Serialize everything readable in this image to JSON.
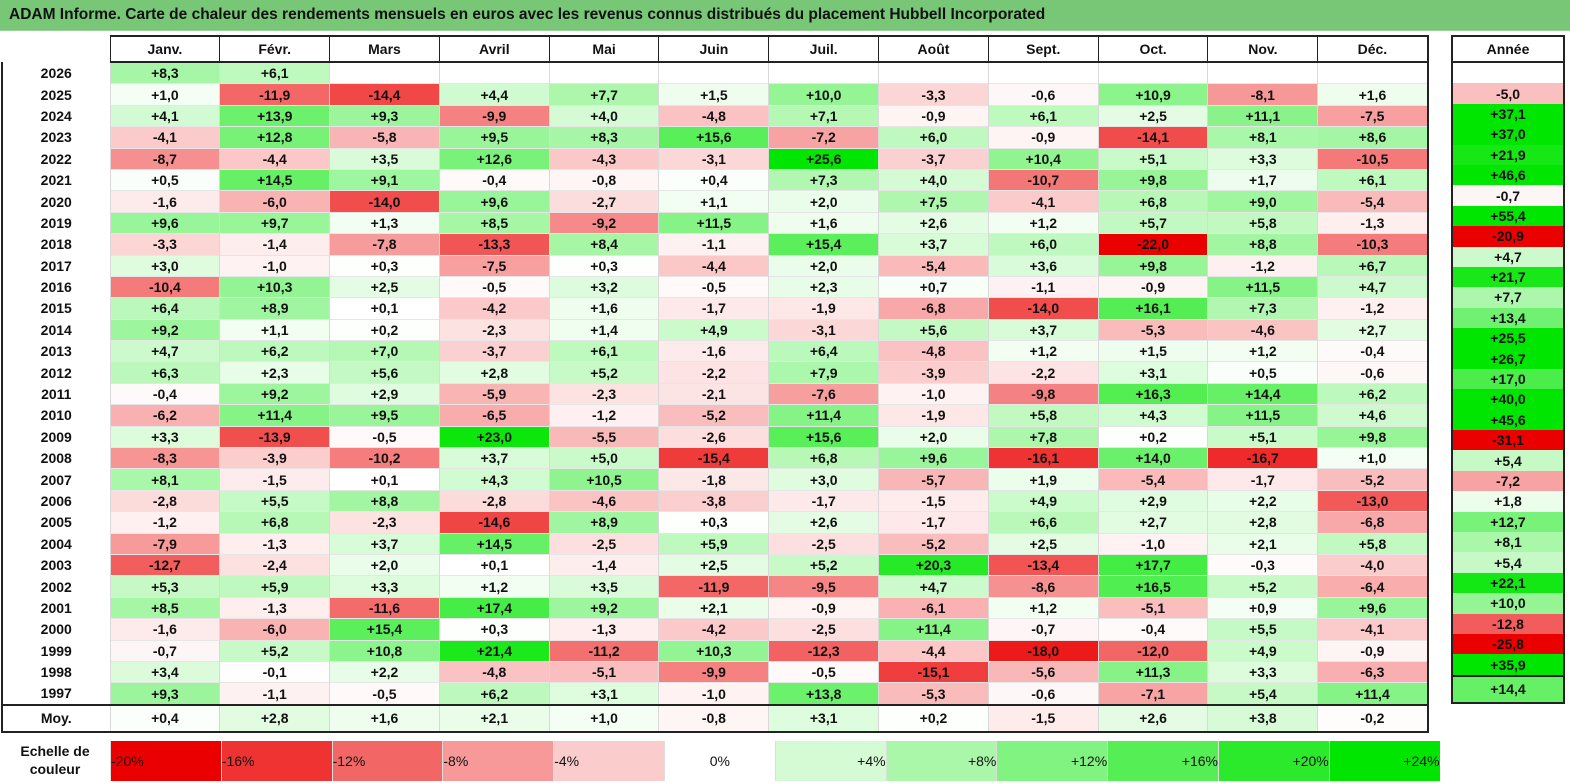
{
  "title": "ADAM Informe. Carte de chaleur des rendements mensuels en euros avec les revenus connus distribués du placement Hubbell Incorporated",
  "chart_data": {
    "type": "heatmap",
    "columns": [
      "Janv.",
      "Févr.",
      "Mars",
      "Avril",
      "Mai",
      "Juin",
      "Juil.",
      "Août",
      "Sept.",
      "Oct.",
      "Nov.",
      "Déc."
    ],
    "year_header": "Année",
    "rows": [
      {
        "year": "2026",
        "values": [
          "+8,3",
          "+6,1",
          "",
          "",
          "",
          "",
          "",
          "",
          "",
          "",
          "",
          ""
        ],
        "annual": ""
      },
      {
        "year": "2025",
        "values": [
          "+1,0",
          "-11,9",
          "-14,4",
          "+4,4",
          "+7,7",
          "+1,5",
          "+10,0",
          "-3,3",
          "-0,6",
          "+10,9",
          "-8,1",
          "+1,6"
        ],
        "annual": "-5,0"
      },
      {
        "year": "2024",
        "values": [
          "+4,1",
          "+13,9",
          "+9,3",
          "-9,9",
          "+4,0",
          "-4,8",
          "+7,1",
          "-0,9",
          "+6,1",
          "+2,5",
          "+11,1",
          "-7,5"
        ],
        "annual": "+37,1"
      },
      {
        "year": "2023",
        "values": [
          "-4,1",
          "+12,8",
          "-5,8",
          "+9,5",
          "+8,3",
          "+15,6",
          "-7,2",
          "+6,0",
          "-0,9",
          "-14,1",
          "+8,1",
          "+8,6"
        ],
        "annual": "+37,0"
      },
      {
        "year": "2022",
        "values": [
          "-8,7",
          "-4,4",
          "+3,5",
          "+12,6",
          "-4,3",
          "-3,1",
          "+25,6",
          "-3,7",
          "+10,4",
          "+5,1",
          "+3,3",
          "-10,5"
        ],
        "annual": "+21,9"
      },
      {
        "year": "2021",
        "values": [
          "+0,5",
          "+14,5",
          "+9,1",
          "-0,4",
          "-0,8",
          "+0,4",
          "+7,3",
          "+4,0",
          "-10,7",
          "+9,8",
          "+1,7",
          "+6,1"
        ],
        "annual": "+46,6"
      },
      {
        "year": "2020",
        "values": [
          "-1,6",
          "-6,0",
          "-14,0",
          "+9,6",
          "-2,7",
          "+1,1",
          "+2,0",
          "+7,5",
          "-4,1",
          "+6,8",
          "+9,0",
          "-5,4"
        ],
        "annual": "-0,7"
      },
      {
        "year": "2019",
        "values": [
          "+9,6",
          "+9,7",
          "+1,3",
          "+8,5",
          "-9,2",
          "+11,5",
          "+1,6",
          "+2,6",
          "+1,2",
          "+5,7",
          "+5,8",
          "-1,3"
        ],
        "annual": "+55,4"
      },
      {
        "year": "2018",
        "values": [
          "-3,3",
          "-1,4",
          "-7,8",
          "-13,3",
          "+8,4",
          "-1,1",
          "+15,4",
          "+3,7",
          "+6,0",
          "-22,0",
          "+8,8",
          "-10,3"
        ],
        "annual": "-20,9"
      },
      {
        "year": "2017",
        "values": [
          "+3,0",
          "-1,0",
          "+0,3",
          "-7,5",
          "+0,3",
          "-4,4",
          "+2,0",
          "-5,4",
          "+3,6",
          "+9,8",
          "-1,2",
          "+6,7"
        ],
        "annual": "+4,7"
      },
      {
        "year": "2016",
        "values": [
          "-10,4",
          "+10,3",
          "+2,5",
          "-0,5",
          "+3,2",
          "-0,5",
          "+2,3",
          "+0,7",
          "-1,1",
          "-0,9",
          "+11,5",
          "+4,7"
        ],
        "annual": "+21,7"
      },
      {
        "year": "2015",
        "values": [
          "+6,4",
          "+8,9",
          "+0,1",
          "-4,2",
          "+1,6",
          "-1,7",
          "-1,9",
          "-6,8",
          "-14,0",
          "+16,1",
          "+7,3",
          "-1,2"
        ],
        "annual": "+7,7"
      },
      {
        "year": "2014",
        "values": [
          "+9,2",
          "+1,1",
          "+0,2",
          "-2,3",
          "+1,4",
          "+4,9",
          "-3,1",
          "+5,6",
          "+3,7",
          "-5,3",
          "-4,6",
          "+2,7"
        ],
        "annual": "+13,4"
      },
      {
        "year": "2013",
        "values": [
          "+4,7",
          "+6,2",
          "+7,0",
          "-3,7",
          "+6,1",
          "-1,6",
          "+6,4",
          "-4,8",
          "+1,2",
          "+1,5",
          "+1,2",
          "-0,4"
        ],
        "annual": "+25,5"
      },
      {
        "year": "2012",
        "values": [
          "+6,3",
          "+2,3",
          "+5,6",
          "+2,8",
          "+5,2",
          "-2,2",
          "+7,9",
          "-3,9",
          "-2,2",
          "+3,1",
          "+0,5",
          "-0,6"
        ],
        "annual": "+26,7"
      },
      {
        "year": "2011",
        "values": [
          "-0,4",
          "+9,2",
          "+2,9",
          "-5,9",
          "-2,3",
          "-2,1",
          "-7,6",
          "-1,0",
          "-9,8",
          "+16,3",
          "+14,4",
          "+6,2"
        ],
        "annual": "+17,0"
      },
      {
        "year": "2010",
        "values": [
          "-6,2",
          "+11,4",
          "+9,5",
          "-6,5",
          "-1,2",
          "-5,2",
          "+11,4",
          "-1,9",
          "+5,8",
          "+4,3",
          "+11,5",
          "+4,6"
        ],
        "annual": "+40,0"
      },
      {
        "year": "2009",
        "values": [
          "+3,3",
          "-13,9",
          "-0,5",
          "+23,0",
          "-5,5",
          "-2,6",
          "+15,6",
          "+2,0",
          "+7,8",
          "+0,2",
          "+5,1",
          "+9,8"
        ],
        "annual": "+45,6"
      },
      {
        "year": "2008",
        "values": [
          "-8,3",
          "-3,9",
          "-10,2",
          "+3,7",
          "+5,0",
          "-15,4",
          "+6,8",
          "+9,6",
          "-16,1",
          "+14,0",
          "-16,7",
          "+1,0"
        ],
        "annual": "-31,1"
      },
      {
        "year": "2007",
        "values": [
          "+8,1",
          "-1,5",
          "+0,1",
          "+4,3",
          "+10,5",
          "-1,8",
          "+3,0",
          "-5,7",
          "+1,9",
          "-5,4",
          "-1,7",
          "-5,2"
        ],
        "annual": "+5,4"
      },
      {
        "year": "2006",
        "values": [
          "-2,8",
          "+5,5",
          "+8,8",
          "-2,8",
          "-4,6",
          "-3,8",
          "-1,7",
          "-1,5",
          "+4,9",
          "+2,9",
          "+2,2",
          "-13,0"
        ],
        "annual": "-7,2"
      },
      {
        "year": "2005",
        "values": [
          "-1,2",
          "+6,8",
          "-2,3",
          "-14,6",
          "+8,9",
          "+0,3",
          "+2,6",
          "-1,7",
          "+6,6",
          "+2,7",
          "+2,8",
          "-6,8"
        ],
        "annual": "+1,8"
      },
      {
        "year": "2004",
        "values": [
          "-7,9",
          "-1,3",
          "+3,7",
          "+14,5",
          "-2,5",
          "+5,9",
          "-2,5",
          "-5,2",
          "+2,5",
          "-1,0",
          "+2,1",
          "+5,8"
        ],
        "annual": "+12,7"
      },
      {
        "year": "2003",
        "values": [
          "-12,7",
          "-2,4",
          "+2,0",
          "+0,1",
          "-1,4",
          "+2,5",
          "+5,2",
          "+20,3",
          "-13,4",
          "+17,7",
          "-0,3",
          "-4,0"
        ],
        "annual": "+8,1"
      },
      {
        "year": "2002",
        "values": [
          "+5,3",
          "+5,9",
          "+3,3",
          "+1,2",
          "+3,5",
          "-11,9",
          "-9,5",
          "+4,7",
          "-8,6",
          "+16,5",
          "+5,2",
          "-6,4"
        ],
        "annual": "+5,4"
      },
      {
        "year": "2001",
        "values": [
          "+8,5",
          "-1,3",
          "-11,6",
          "+17,4",
          "+9,2",
          "+2,1",
          "-0,9",
          "-6,1",
          "+1,2",
          "-5,1",
          "+0,9",
          "+9,6"
        ],
        "annual": "+22,1"
      },
      {
        "year": "2000",
        "values": [
          "-1,6",
          "-6,0",
          "+15,4",
          "+0,3",
          "-1,3",
          "-4,2",
          "-2,5",
          "+11,4",
          "-0,7",
          "-0,4",
          "+5,5",
          "-4,1"
        ],
        "annual": "+10,0"
      },
      {
        "year": "1999",
        "values": [
          "-0,7",
          "+5,2",
          "+10,8",
          "+21,4",
          "-11,2",
          "+10,3",
          "-12,3",
          "-4,4",
          "-18,0",
          "-12,0",
          "+4,9",
          "-0,9"
        ],
        "annual": "-12,8"
      },
      {
        "year": "1998",
        "values": [
          "+3,4",
          "-0,1",
          "+2,2",
          "-4,8",
          "-5,1",
          "-9,9",
          "-0,5",
          "-15,1",
          "-5,6",
          "+11,3",
          "+3,3",
          "-6,3"
        ],
        "annual": "-25,8"
      },
      {
        "year": "1997",
        "values": [
          "+9,3",
          "-1,1",
          "-0,5",
          "+6,2",
          "+3,1",
          "-1,0",
          "+13,8",
          "-5,3",
          "-0,6",
          "-7,1",
          "+5,4",
          "+11,4"
        ],
        "annual": "+35,9"
      }
    ],
    "average": {
      "label": "Moy.",
      "values": [
        "+0,4",
        "+2,8",
        "+1,6",
        "+2,1",
        "+1,0",
        "-0,8",
        "+3,1",
        "+0,2",
        "-1,5",
        "+2,6",
        "+3,8",
        "-0,2"
      ],
      "annual": "+14,4"
    },
    "scale": {
      "label": "Echelle de couleur",
      "steps": [
        "-20%",
        "-16%",
        "-12%",
        "-8%",
        "-4%",
        "0%",
        "+4%",
        "+8%",
        "+12%",
        "+16%",
        "+20%",
        "+24%"
      ],
      "step_values": [
        -20,
        -16,
        -12,
        -8,
        -4,
        0,
        4,
        8,
        12,
        16,
        20,
        24
      ]
    },
    "colors": {
      "negative": "#ff0000",
      "neutral": "#ffffff",
      "positive": "#00e000"
    }
  }
}
